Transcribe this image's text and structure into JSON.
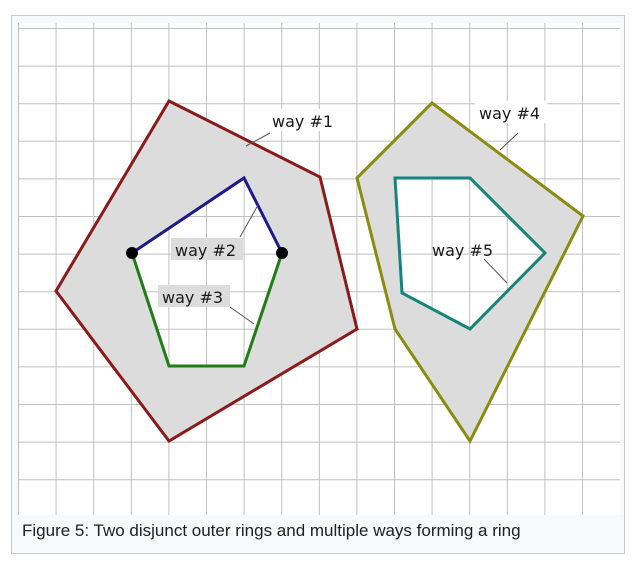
{
  "figure": {
    "caption": "Figure 5: Two disjunct outer rings and multiple ways forming a ring",
    "labels": {
      "way1": "way #1",
      "way2": "way #2",
      "way3": "way #3",
      "way4": "way #4",
      "way5": "way #5"
    },
    "colors": {
      "way1": "#8b1a1a",
      "way2": "#1f1a8b",
      "way3": "#1e7d14",
      "way4": "#8b8b10",
      "way5": "#14857a",
      "fill": "#dcdcdc",
      "grid": "#c0c0c0",
      "node": "#000000"
    }
  }
}
